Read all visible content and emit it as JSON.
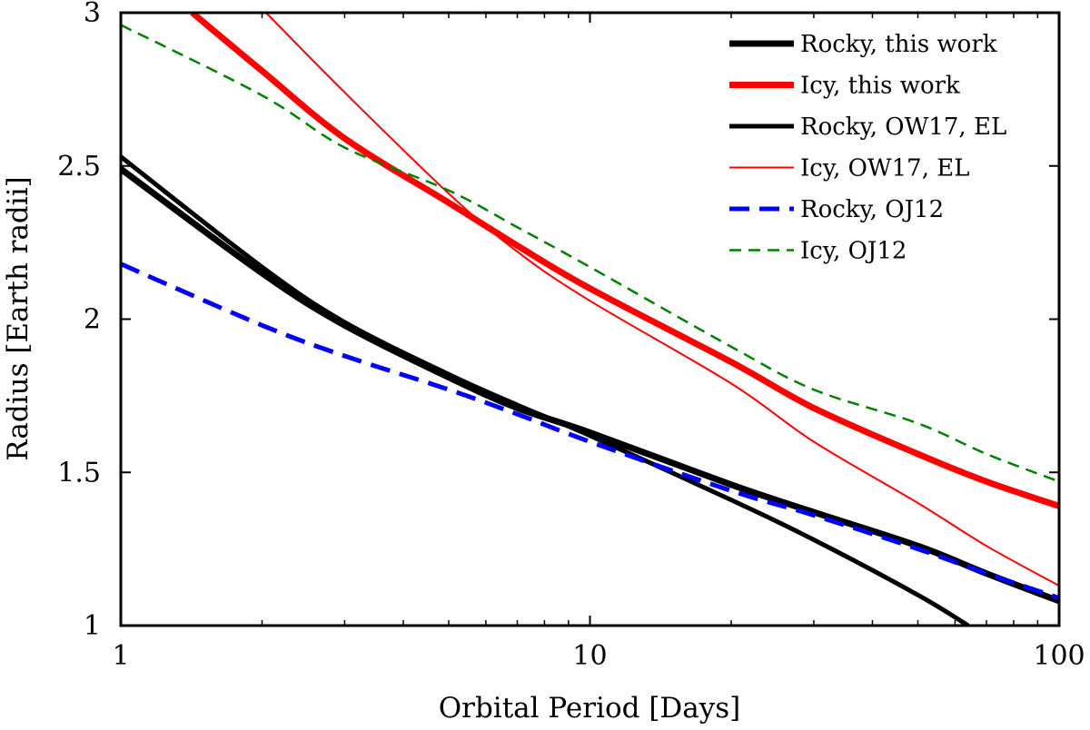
{
  "chart_data": {
    "type": "line",
    "title": "",
    "xlabel": "Orbital Period [Days]",
    "ylabel": "Radius [Earth radii]",
    "xscale": "log",
    "xlim": [
      1,
      100
    ],
    "ylim": [
      1,
      3
    ],
    "grid": false,
    "legend_position": "top-right",
    "xticks": [
      1,
      10,
      100
    ],
    "xtick_labels": [
      "1",
      "10",
      "100"
    ],
    "yticks": [
      1,
      1.5,
      2,
      2.5,
      3
    ],
    "ytick_labels": [
      "1",
      "1.5",
      "2",
      "2.5",
      "3"
    ],
    "series": [
      {
        "name": "Rocky, this work",
        "color": "#000000",
        "style": "solid-thick",
        "x": [
          1,
          2,
          3,
          5,
          7,
          10,
          20,
          30,
          50,
          70,
          100
        ],
        "y": [
          2.49,
          2.15,
          1.98,
          1.81,
          1.71,
          1.63,
          1.46,
          1.37,
          1.26,
          1.17,
          1.08
        ]
      },
      {
        "name": "Icy, this work",
        "color": "#ff0000",
        "style": "solid-thick",
        "x": [
          1.42,
          2,
          3,
          5,
          7,
          10,
          20,
          30,
          50,
          70,
          100
        ],
        "y": [
          3.0,
          2.81,
          2.59,
          2.38,
          2.24,
          2.1,
          1.86,
          1.71,
          1.56,
          1.47,
          1.39
        ]
      },
      {
        "name": "Rocky, OW17, EL",
        "color": "#000000",
        "style": "solid",
        "x": [
          1,
          2,
          3,
          5,
          7,
          10,
          20,
          30,
          50,
          64
        ],
        "y": [
          2.53,
          2.17,
          1.99,
          1.82,
          1.72,
          1.62,
          1.41,
          1.28,
          1.1,
          1.0
        ]
      },
      {
        "name": "Icy, OW17, EL",
        "color": "#ff0000",
        "style": "solid-thin",
        "x": [
          2.04,
          3,
          5,
          7,
          10,
          20,
          30,
          50,
          70,
          100
        ],
        "y": [
          3.0,
          2.74,
          2.41,
          2.22,
          2.06,
          1.79,
          1.6,
          1.4,
          1.26,
          1.13
        ]
      },
      {
        "name": "Rocky, OJ12",
        "color": "#0000ff",
        "style": "dashed",
        "x": [
          1,
          2,
          3,
          5,
          7,
          10,
          20,
          30,
          50,
          70,
          100
        ],
        "y": [
          2.18,
          1.98,
          1.88,
          1.77,
          1.69,
          1.6,
          1.44,
          1.36,
          1.25,
          1.17,
          1.09
        ]
      },
      {
        "name": "Icy, OJ12",
        "color": "#008000",
        "style": "dashed-thin",
        "x": [
          1,
          2,
          3,
          5,
          7,
          10,
          20,
          30,
          50,
          70,
          100
        ],
        "y": [
          2.96,
          2.73,
          2.56,
          2.42,
          2.3,
          2.17,
          1.91,
          1.77,
          1.66,
          1.56,
          1.47
        ]
      }
    ]
  }
}
